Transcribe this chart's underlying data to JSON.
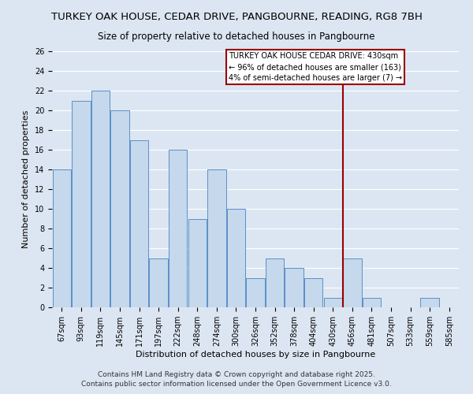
{
  "title": "TURKEY OAK HOUSE, CEDAR DRIVE, PANGBOURNE, READING, RG8 7BH",
  "subtitle": "Size of property relative to detached houses in Pangbourne",
  "xlabel": "Distribution of detached houses by size in Pangbourne",
  "ylabel": "Number of detached properties",
  "categories": [
    "67sqm",
    "93sqm",
    "119sqm",
    "145sqm",
    "171sqm",
    "197sqm",
    "222sqm",
    "248sqm",
    "274sqm",
    "300sqm",
    "326sqm",
    "352sqm",
    "378sqm",
    "404sqm",
    "430sqm",
    "456sqm",
    "481sqm",
    "507sqm",
    "533sqm",
    "559sqm",
    "585sqm"
  ],
  "values": [
    14,
    21,
    22,
    20,
    17,
    5,
    16,
    9,
    14,
    10,
    3,
    5,
    4,
    3,
    1,
    5,
    1,
    0,
    0,
    1,
    0
  ],
  "bar_color": "#c5d8ec",
  "bar_edge_color": "#5b8fc9",
  "background_color": "#dce6f2",
  "plot_bg_color": "#dce6f2",
  "grid_color": "#ffffff",
  "vline_x": 14.5,
  "vline_color": "#990000",
  "legend_text_line1": "TURKEY OAK HOUSE CEDAR DRIVE: 430sqm",
  "legend_text_line2": "← 96% of detached houses are smaller (163)",
  "legend_text_line3": "4% of semi-detached houses are larger (7) →",
  "legend_box_facecolor": "#ffffff",
  "legend_box_edgecolor": "#990000",
  "footer_line1": "Contains HM Land Registry data © Crown copyright and database right 2025.",
  "footer_line2": "Contains public sector information licensed under the Open Government Licence v3.0.",
  "ylim": [
    0,
    26
  ],
  "yticks": [
    0,
    2,
    4,
    6,
    8,
    10,
    12,
    14,
    16,
    18,
    20,
    22,
    24,
    26
  ],
  "title_fontsize": 9.5,
  "subtitle_fontsize": 8.5,
  "axis_label_fontsize": 8,
  "tick_fontsize": 7,
  "legend_fontsize": 7,
  "footer_fontsize": 6.5
}
